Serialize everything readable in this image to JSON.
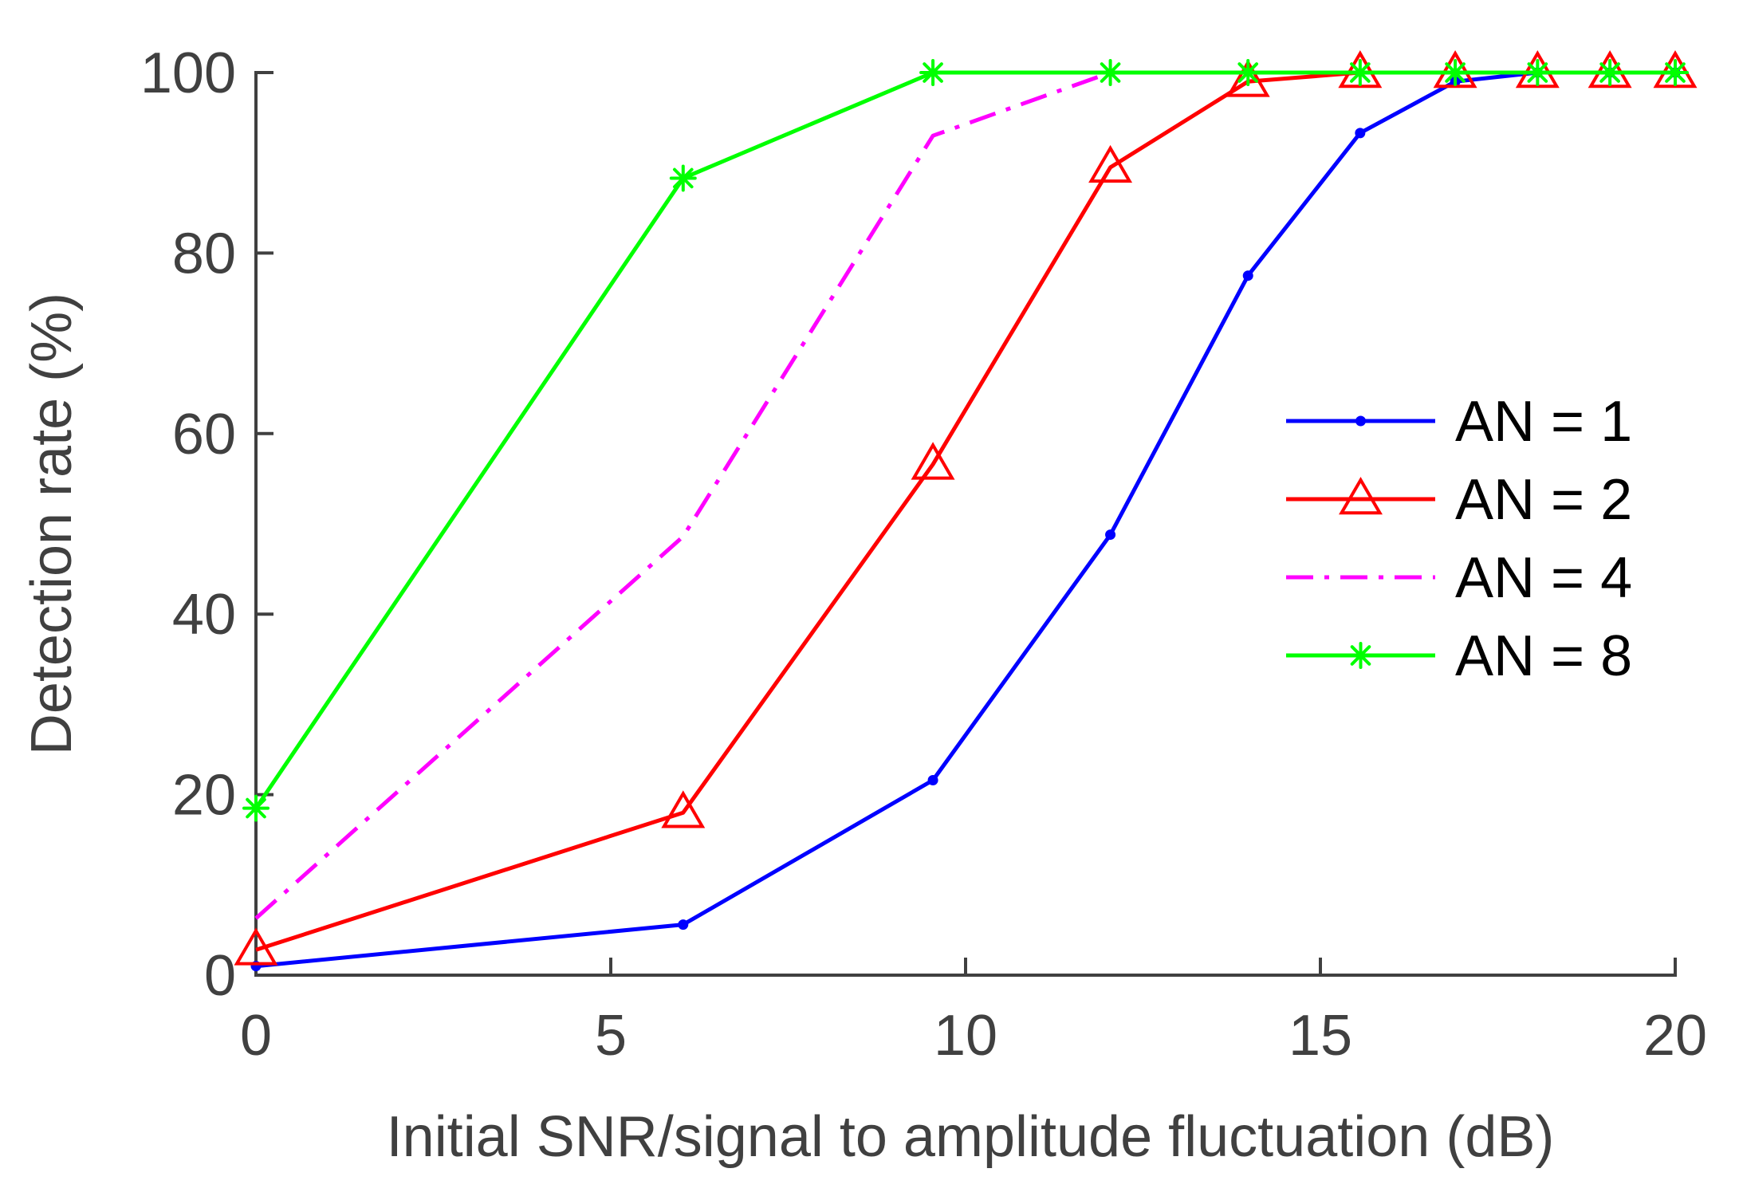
{
  "chart_data": {
    "type": "line",
    "title": "",
    "xlabel": "Initial SNR/signal to amplitude fluctuation (dB)",
    "ylabel": "Detection rate (%)",
    "xlim": [
      0,
      20
    ],
    "ylim": [
      0,
      100
    ],
    "xticks": [
      0,
      5,
      10,
      15,
      20
    ],
    "yticks": [
      0,
      20,
      40,
      60,
      80,
      100
    ],
    "grid": false,
    "legend_position": "right",
    "x": [
      0,
      6.02,
      9.54,
      12.04,
      13.98,
      15.56,
      16.9,
      18.06,
      19.08,
      20
    ],
    "series": [
      {
        "name": "AN = 1",
        "color": "#0000ff",
        "dash": "solid",
        "marker": "dot",
        "values": [
          1.0,
          5.6,
          21.6,
          48.8,
          77.5,
          93.3,
          99.0,
          100,
          100,
          100
        ]
      },
      {
        "name": "AN = 2",
        "color": "#ff0000",
        "dash": "solid",
        "marker": "triangle",
        "values": [
          2.8,
          18.0,
          56.6,
          89.5,
          99.0,
          100,
          100,
          100,
          100,
          100
        ]
      },
      {
        "name": "AN = 4",
        "color": "#ff00ff",
        "dash": "dashdot",
        "marker": "none",
        "values": [
          6.3,
          48.6,
          93.0,
          100,
          100,
          100,
          100,
          100,
          100,
          100
        ]
      },
      {
        "name": "AN = 8",
        "color": "#00ff00",
        "dash": "solid",
        "marker": "asterisk",
        "values": [
          18.5,
          88.3,
          100,
          100,
          100,
          100,
          100,
          100,
          100,
          100
        ]
      }
    ]
  }
}
